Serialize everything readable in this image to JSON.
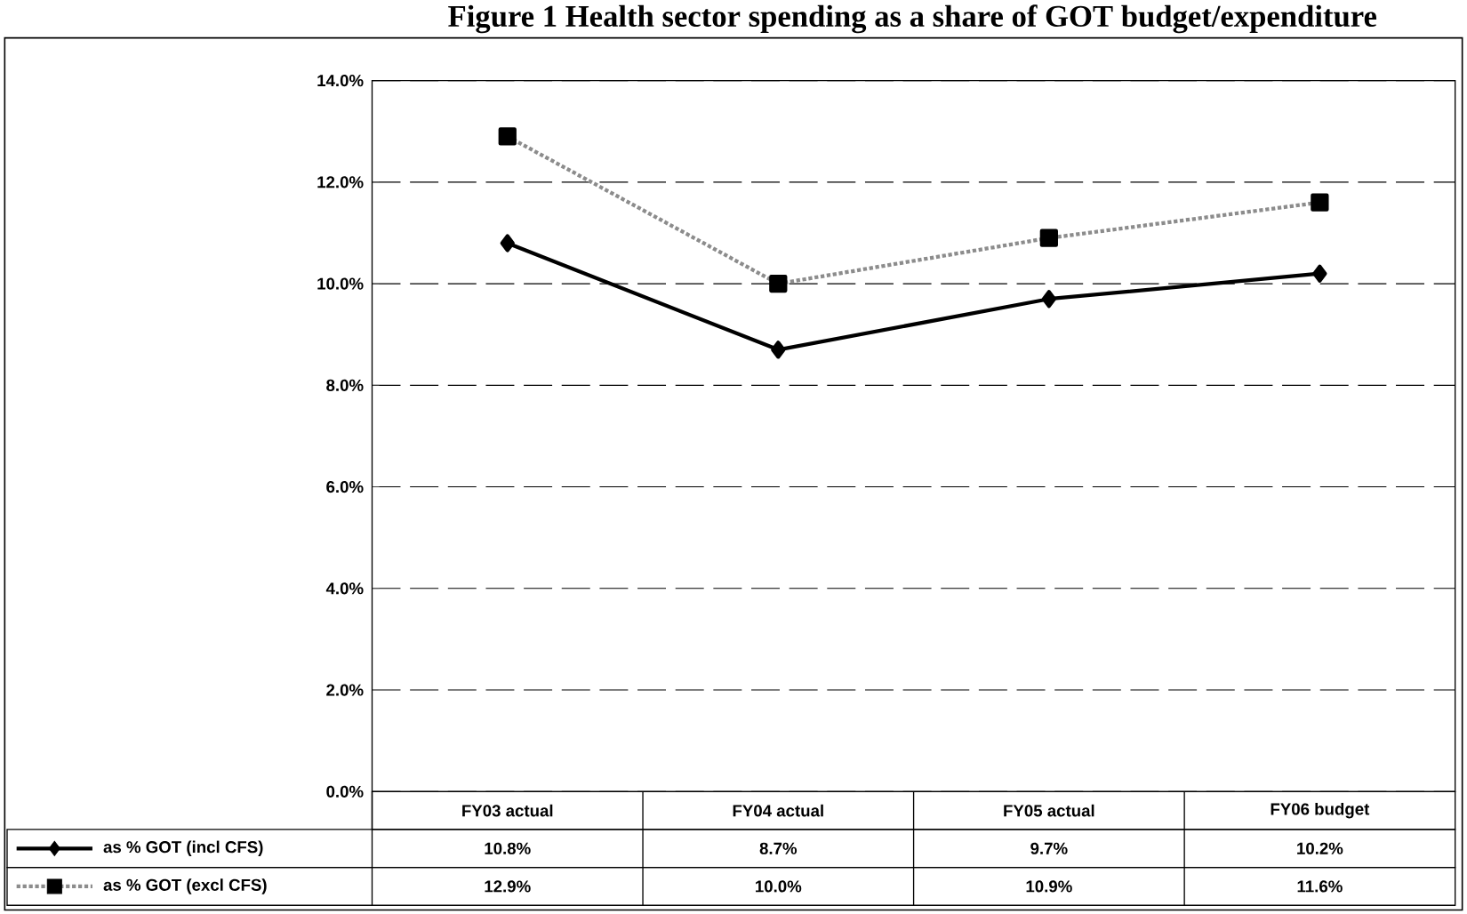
{
  "chart_data": {
    "type": "line",
    "title": "Figure 1 Health sector spending as a share of GOT budget/expenditure",
    "categories": [
      "FY03 actual",
      "FY04 actual",
      "FY05 actual",
      "FY06 budget"
    ],
    "series": [
      {
        "name": "as % GOT (incl CFS)",
        "color": "#000000",
        "values": [
          10.8,
          8.7,
          9.7,
          10.2
        ],
        "marker": "diamond",
        "line_style": "solid",
        "value_labels": [
          "10.8%",
          "8.7%",
          "9.7%",
          "10.2%"
        ]
      },
      {
        "name": "as % GOT (excl CFS)",
        "color": "#8c8c8c",
        "values": [
          12.9,
          10.0,
          10.9,
          11.6
        ],
        "marker": "square",
        "line_style": "dotted",
        "value_labels": [
          "12.9%",
          "10.0%",
          "10.9%",
          "11.6%"
        ]
      }
    ],
    "ylim": [
      0,
      14
    ],
    "yticks": [
      {
        "value": 0,
        "label": "0.0%"
      },
      {
        "value": 2,
        "label": "2.0%"
      },
      {
        "value": 4,
        "label": "4.0%"
      },
      {
        "value": 6,
        "label": "6.0%"
      },
      {
        "value": 8,
        "label": "8.0%"
      },
      {
        "value": 10,
        "label": "10.0%"
      },
      {
        "value": 12,
        "label": "12.0%"
      },
      {
        "value": 14,
        "label": "14.0%"
      }
    ],
    "grid": "y",
    "legend": "bottom"
  }
}
